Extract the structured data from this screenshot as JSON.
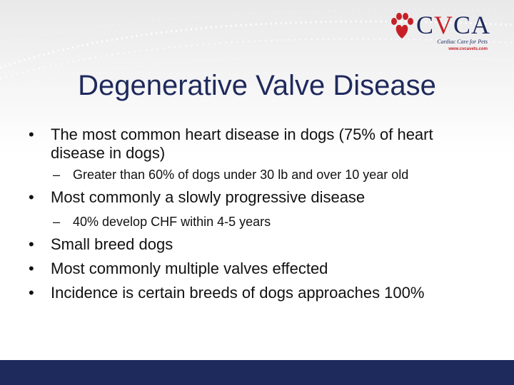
{
  "logo": {
    "name_left": "CV",
    "name_right": "CA",
    "tagline": "Cardiac Care for Pets",
    "url": "www.cvcavets.com",
    "colors": {
      "navy": "#1f2a5c",
      "red": "#c62026"
    }
  },
  "slide": {
    "title": "Degenerative Valve Disease",
    "items": [
      {
        "level": 1,
        "bullet": "•",
        "text": "The most common heart disease in dogs (75% of heart disease in dogs)"
      },
      {
        "level": 2,
        "bullet": "–",
        "text": "Greater than 60% of dogs under 30 lb and over 10 year old"
      },
      {
        "level": 1,
        "bullet": "•",
        "text": "Most commonly a slowly progressive disease"
      },
      {
        "level": 2,
        "bullet": "–",
        "text": "40% develop CHF within 4-5 years"
      },
      {
        "level": 1,
        "bullet": "•",
        "text": "Small breed dogs"
      },
      {
        "level": 1,
        "bullet": "•",
        "text": "Most commonly multiple valves effected"
      },
      {
        "level": 1,
        "bullet": "•",
        "text": "Incidence is certain breeds of dogs approaches 100%"
      }
    ]
  },
  "footer_color": "#1f2a5c"
}
